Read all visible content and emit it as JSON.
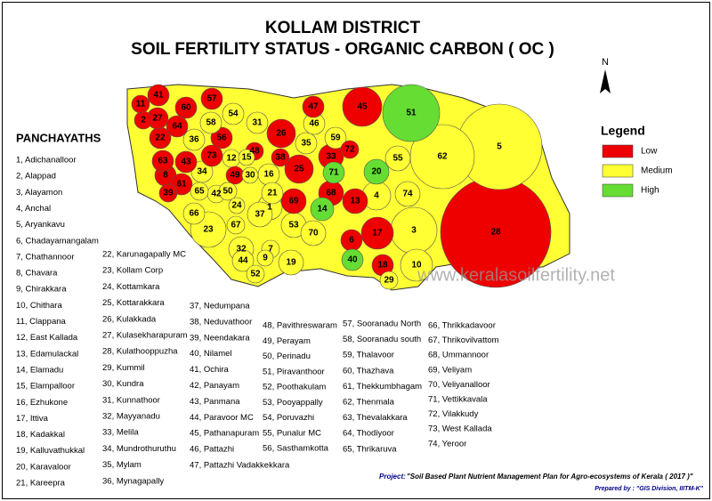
{
  "header": {
    "title_lines": [
      "KOLLAM DISTRICT",
      "SOIL FERTILITY STATUS - ORGANIC CARBON ( OC )"
    ]
  },
  "list_heading": "PANCHAYATHS",
  "panchayaths": [
    "1, Adichanalloor",
    "2, Alappad",
    "3, Alayamon",
    "4, Anchal",
    "5, Aryankavu",
    "6, Chadayamangalam",
    "7, Chathannoor",
    "8, Chavara",
    "9, Chirakkara",
    "10, Chithara",
    "11, Clappana",
    "12, East Kallada",
    "13, Edamulackal",
    "14, Elamadu",
    "15, Elampalloor",
    "16, Ezhukone",
    "17, Ittiva",
    "18, Kadakkal",
    "19, Kalluvathukkal",
    "20, Karavaloor",
    "21, Kareepra",
    "22, Karunagapally MC",
    "23, Kollam Corp",
    "24, Kottamkara",
    "25, Kottarakkara",
    "26, Kulakkada",
    "27, Kulasekharapuram",
    "28, Kulathooppuzha",
    "29, Kummil",
    "30, Kundra",
    "31, Kunnathoor",
    "32, Mayyanadu",
    "33, Melila",
    "34, Mundrothuruthu",
    "35, Mylam",
    "36, Mynagapally",
    "37, Nedumpana",
    "38, Neduvathoor",
    "39, Neendakara",
    "40, Nilamel",
    "41, Ochira",
    "42, Panayam",
    "43, Panmana",
    "44, Paravoor MC",
    "45, Pathanapuram",
    "46, Pattazhi",
    "47, Pattazhi Vadakkekkara",
    "48, Pavithreswaram",
    "49, Perayam",
    "50, Perinadu",
    "51, Piravanthoor",
    "52, Poothakulam",
    "53, Pooyappally",
    "54, Poruvazhi",
    "55, Punalur MC",
    "56, Sasthamkotta",
    "57, Sooranadu North",
    "58, Sooranadu south",
    "59, Thalavoor",
    "60, Thazhava",
    "61, Thekkumbhagam",
    "62, Thenmala",
    "63, Thevalakkara",
    "64, Thodiyoor",
    "65, Thrikaruva",
    "66, Thrikkadavoor",
    "67, Thrikovilvattom",
    "68, Ummannoor",
    "69, Veliyam",
    "70, Veliyanalloor",
    "71, Vettikkavala",
    "72, Vilakkudy",
    "73, West Kallada",
    "74, Yeroor"
  ],
  "map": {
    "north": "N",
    "watermark": "www.keralasoilfertility.net",
    "regions": [
      {
        "label": "1",
        "color": "#ffff33"
      },
      {
        "label": "2",
        "color": "#ee0000"
      },
      {
        "label": "3",
        "color": "#ffff33"
      },
      {
        "label": "4",
        "color": "#ffff33"
      },
      {
        "label": "5",
        "color": "#ffff33"
      },
      {
        "label": "6",
        "color": "#ee0000"
      },
      {
        "label": "7",
        "color": "#ffff33"
      },
      {
        "label": "8",
        "color": "#ee0000"
      },
      {
        "label": "9",
        "color": "#ffff33"
      },
      {
        "label": "10",
        "color": "#ffff33"
      },
      {
        "label": "11",
        "color": "#ee0000"
      },
      {
        "label": "12",
        "color": "#ffff33"
      },
      {
        "label": "13",
        "color": "#ee0000"
      },
      {
        "label": "14",
        "color": "#66dd33"
      },
      {
        "label": "15",
        "color": "#ffff33"
      },
      {
        "label": "16",
        "color": "#ffff33"
      },
      {
        "label": "17",
        "color": "#ee0000"
      },
      {
        "label": "18",
        "color": "#ee0000"
      },
      {
        "label": "19",
        "color": "#ffff33"
      },
      {
        "label": "20",
        "color": "#66dd33"
      },
      {
        "label": "21",
        "color": "#ffff33"
      },
      {
        "label": "22",
        "color": "#ee0000"
      },
      {
        "label": "23",
        "color": "#ffff33"
      },
      {
        "label": "24",
        "color": "#ffff33"
      },
      {
        "label": "25",
        "color": "#ee0000"
      },
      {
        "label": "26",
        "color": "#ee0000"
      },
      {
        "label": "27",
        "color": "#ee0000"
      },
      {
        "label": "28",
        "color": "#ee0000"
      },
      {
        "label": "29",
        "color": "#ffff33"
      },
      {
        "label": "30",
        "color": "#ffff33"
      },
      {
        "label": "31",
        "color": "#ffff33"
      },
      {
        "label": "32",
        "color": "#ffff33"
      },
      {
        "label": "33",
        "color": "#ee0000"
      },
      {
        "label": "34",
        "color": "#ffff33"
      },
      {
        "label": "35",
        "color": "#ffff33"
      },
      {
        "label": "36",
        "color": "#ffff33"
      },
      {
        "label": "37",
        "color": "#ffff33"
      },
      {
        "label": "38",
        "color": "#ee0000"
      },
      {
        "label": "39",
        "color": "#ee0000"
      },
      {
        "label": "40",
        "color": "#66dd33"
      },
      {
        "label": "41",
        "color": "#ee0000"
      },
      {
        "label": "42",
        "color": "#ffff33"
      },
      {
        "label": "43",
        "color": "#ee0000"
      },
      {
        "label": "44",
        "color": "#ffff33"
      },
      {
        "label": "45",
        "color": "#ee0000"
      },
      {
        "label": "46",
        "color": "#ffff33"
      },
      {
        "label": "47",
        "color": "#ee0000"
      },
      {
        "label": "48",
        "color": "#ee0000"
      },
      {
        "label": "49",
        "color": "#ee0000"
      },
      {
        "label": "50",
        "color": "#ffff33"
      },
      {
        "label": "51",
        "color": "#66dd33"
      },
      {
        "label": "52",
        "color": "#ffff33"
      },
      {
        "label": "53",
        "color": "#ffff33"
      },
      {
        "label": "54",
        "color": "#ffff33"
      },
      {
        "label": "55",
        "color": "#ffff33"
      },
      {
        "label": "56",
        "color": "#ee0000"
      },
      {
        "label": "57",
        "color": "#ee0000"
      },
      {
        "label": "58",
        "color": "#ffff33"
      },
      {
        "label": "59",
        "color": "#ffff33"
      },
      {
        "label": "60",
        "color": "#ee0000"
      },
      {
        "label": "61",
        "color": "#ee0000"
      },
      {
        "label": "62",
        "color": "#ffff33"
      },
      {
        "label": "63",
        "color": "#ee0000"
      },
      {
        "label": "64",
        "color": "#ee0000"
      },
      {
        "label": "65",
        "color": "#ffff33"
      },
      {
        "label": "66",
        "color": "#ffff33"
      },
      {
        "label": "67",
        "color": "#ffff33"
      },
      {
        "label": "68",
        "color": "#ee0000"
      },
      {
        "label": "69",
        "color": "#ee0000"
      },
      {
        "label": "70",
        "color": "#ffff33"
      },
      {
        "label": "71",
        "color": "#66dd33"
      },
      {
        "label": "72",
        "color": "#ee0000"
      },
      {
        "label": "73",
        "color": "#ee0000"
      },
      {
        "label": "74",
        "color": "#ffff33"
      }
    ]
  },
  "legend": {
    "title": "Legend",
    "items": [
      {
        "name": "Low",
        "color": "#ee0000"
      },
      {
        "name": "Medium",
        "color": "#ffff33"
      },
      {
        "name": "High",
        "color": "#66dd33"
      }
    ]
  },
  "footer": {
    "project_label": "Project:",
    "project": "\"Soil Based Plant Nutrient Management Plan for Agro-ecosystems of Kerala ( 2017 )\"",
    "prepared_by": "Prepared by : \"GIS Division, IIITM-K\""
  }
}
